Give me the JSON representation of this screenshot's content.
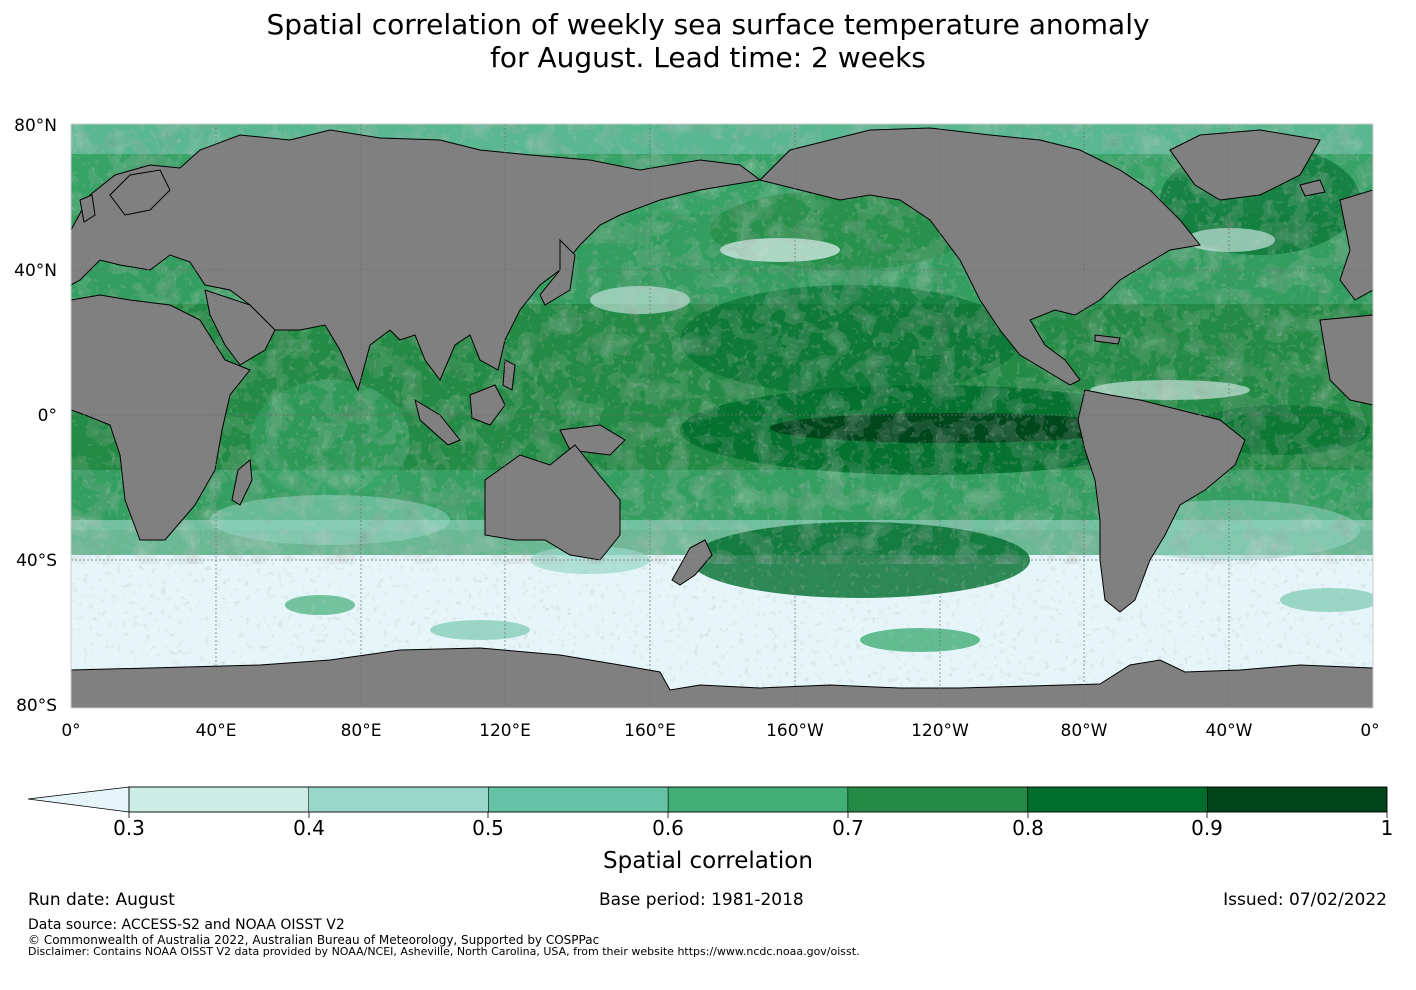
{
  "title": {
    "line1": "Spatial correlation of weekly sea surface temperature anomaly",
    "line2": "for August. Lead time: 2 weeks"
  },
  "map": {
    "lat_ticks": [
      "80°N",
      "40°N",
      "0°",
      "40°S",
      "80°S"
    ],
    "lon_ticks": [
      "0°",
      "40°E",
      "80°E",
      "120°E",
      "160°E",
      "160°W",
      "120°W",
      "80°W",
      "40°W",
      "0°"
    ],
    "colors": {
      "land": "#808080",
      "below_min": "#e5f5f9",
      "grid": "#6e6e6e"
    }
  },
  "colorbar": {
    "label": "Spatial correlation",
    "ticks": [
      "0.3",
      "0.4",
      "0.5",
      "0.6",
      "0.7",
      "0.8",
      "0.9",
      "1"
    ],
    "colors": [
      "#ccece6",
      "#99d8c9",
      "#66c2a4",
      "#41ae76",
      "#238b45",
      "#006d2c",
      "#00441b"
    ],
    "below_color": "#e5f5f9"
  },
  "footer": {
    "run_date": "Run date: August",
    "base_period": "Base period: 1981-2018",
    "issued": "Issued: 07/02/2022",
    "data_source": "Data source: ACCESS-S2 and NOAA OISST V2",
    "copyright": "© Commonwealth of Australia 2022, Australian Bureau of Meteorology, Supported by COSPPac",
    "disclaimer": "Disclaimer: Contains NOAA OISST V2 data provided by NOAA/NCEI, Asheville, North Carolina, USA, from their website https://www.ncdc.noaa.gov/oisst."
  }
}
